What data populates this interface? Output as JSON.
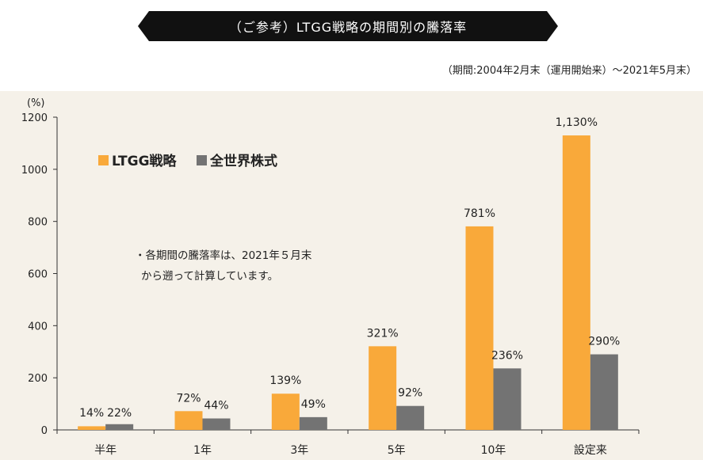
{
  "header": {
    "title": "（ご参考）LTGG戦略の期間別の騰落率",
    "period": "（期間:2004年2月末（運用開始来）〜2021年5月末）"
  },
  "colors": {
    "ltgg": "#f9a93a",
    "world": "#737373",
    "band": "#f5f1e9",
    "banner": "#111111"
  },
  "chart_data": {
    "type": "bar",
    "yunit": "(%)",
    "ylim": [
      0,
      1200
    ],
    "yticks": [
      0,
      200,
      400,
      600,
      800,
      1000,
      1200
    ],
    "categories": [
      "半年",
      "1年",
      "3年",
      "5年",
      "10年",
      "設定来"
    ],
    "series": [
      {
        "name": "LTGG戦略",
        "values": [
          14,
          72,
          139,
          321,
          781,
          1130
        ],
        "labels": [
          "14%",
          "72%",
          "139%",
          "321%",
          "781%",
          "1,130%"
        ]
      },
      {
        "name": "全世界株式",
        "values": [
          22,
          44,
          49,
          92,
          236,
          290
        ],
        "labels": [
          "22%",
          "44%",
          "49%",
          "92%",
          "236%",
          "290%"
        ]
      }
    ],
    "legend": "top-left",
    "note": [
      "・各期間の騰落率は、2021年５月末",
      "から遡って計算しています。"
    ]
  }
}
